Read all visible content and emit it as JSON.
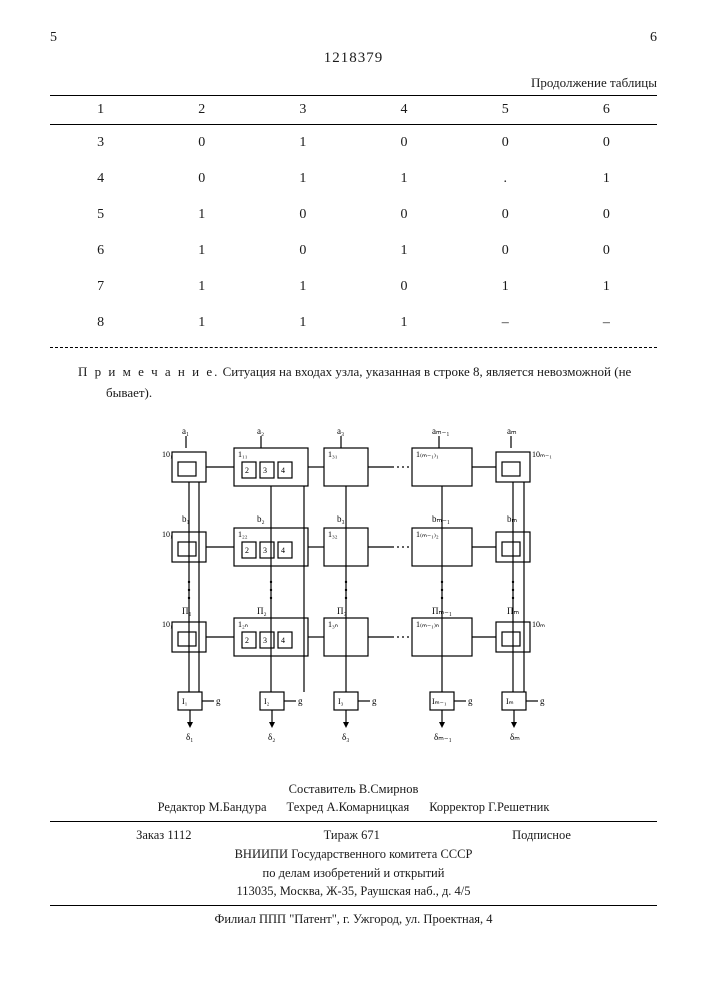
{
  "header": {
    "left_marker": "5",
    "doc_number": "1218379",
    "right_marker": "6",
    "continuation_label": "Продолжение таблицы"
  },
  "table": {
    "columns": [
      "1",
      "2",
      "3",
      "4",
      "5",
      "6"
    ],
    "rows": [
      [
        "3",
        "0",
        "1",
        "0",
        "0",
        "0"
      ],
      [
        "4",
        "0",
        "1",
        "1",
        ".",
        "1"
      ],
      [
        "5",
        "1",
        "0",
        "0",
        "0",
        "0"
      ],
      [
        "6",
        "1",
        "0",
        "1",
        "0",
        "0"
      ],
      [
        "7",
        "1",
        "1",
        "0",
        "1",
        "1"
      ],
      [
        "8",
        "1",
        "1",
        "1",
        "–",
        "–"
      ]
    ]
  },
  "note": {
    "label": "П р и м е ч а н и е.",
    "text": "Ситуация на входах узла, указанная в строке 8, является невозможной (не бывает)."
  },
  "diagram": {
    "top_labels": [
      "a₁",
      "a₂",
      "a₃",
      "aₘ₋₁",
      "aₘ"
    ],
    "row_labels_left": [
      "10₁",
      "10₁",
      "10₁"
    ],
    "mid_labels": [
      "b₁",
      "b₂",
      "b₃",
      "bₘ₋₁",
      "bₘ"
    ],
    "n_labels": [
      "Π₁",
      "Π₂",
      "Π₃",
      "Πₘ₋₁",
      "Πₘ"
    ],
    "bottom_labels": [
      "δ₁",
      "δ₂",
      "δ₃",
      "δₘ₋₁",
      "δₘ"
    ],
    "block_internal": [
      "2",
      "3",
      "4"
    ],
    "t_labels": [
      "1₁₁",
      "1₂₁",
      "1₃₁",
      "1₍ₘ₋₁₎₁",
      "1₂₂",
      "1₃₂",
      "1₍ₘ₋₁₎₂",
      "1₂ₙ",
      "1₃ₙ",
      "1₍ₘ₋₁₎ₙ"
    ],
    "g_label": "g",
    "right_10m": "10ₘ"
  },
  "credits": {
    "compiler": "Составитель В.Смирнов",
    "editor": "Редактор М.Бандура",
    "tech_editor": "Техред А.Комарницкая",
    "corrector": "Корректор Г.Решетник"
  },
  "pubinfo": {
    "order": "Заказ 1112",
    "tirage": "Тираж 671",
    "subscription": "Подписное",
    "org1": "ВНИИПИ Государственного комитета СССР",
    "org2": "по делам изобретений и открытий",
    "address": "113035, Москва, Ж-35, Раушская наб., д. 4/5"
  },
  "filial": "Филиал ППП \"Патент\", г. Ужгород, ул. Проектная, 4"
}
